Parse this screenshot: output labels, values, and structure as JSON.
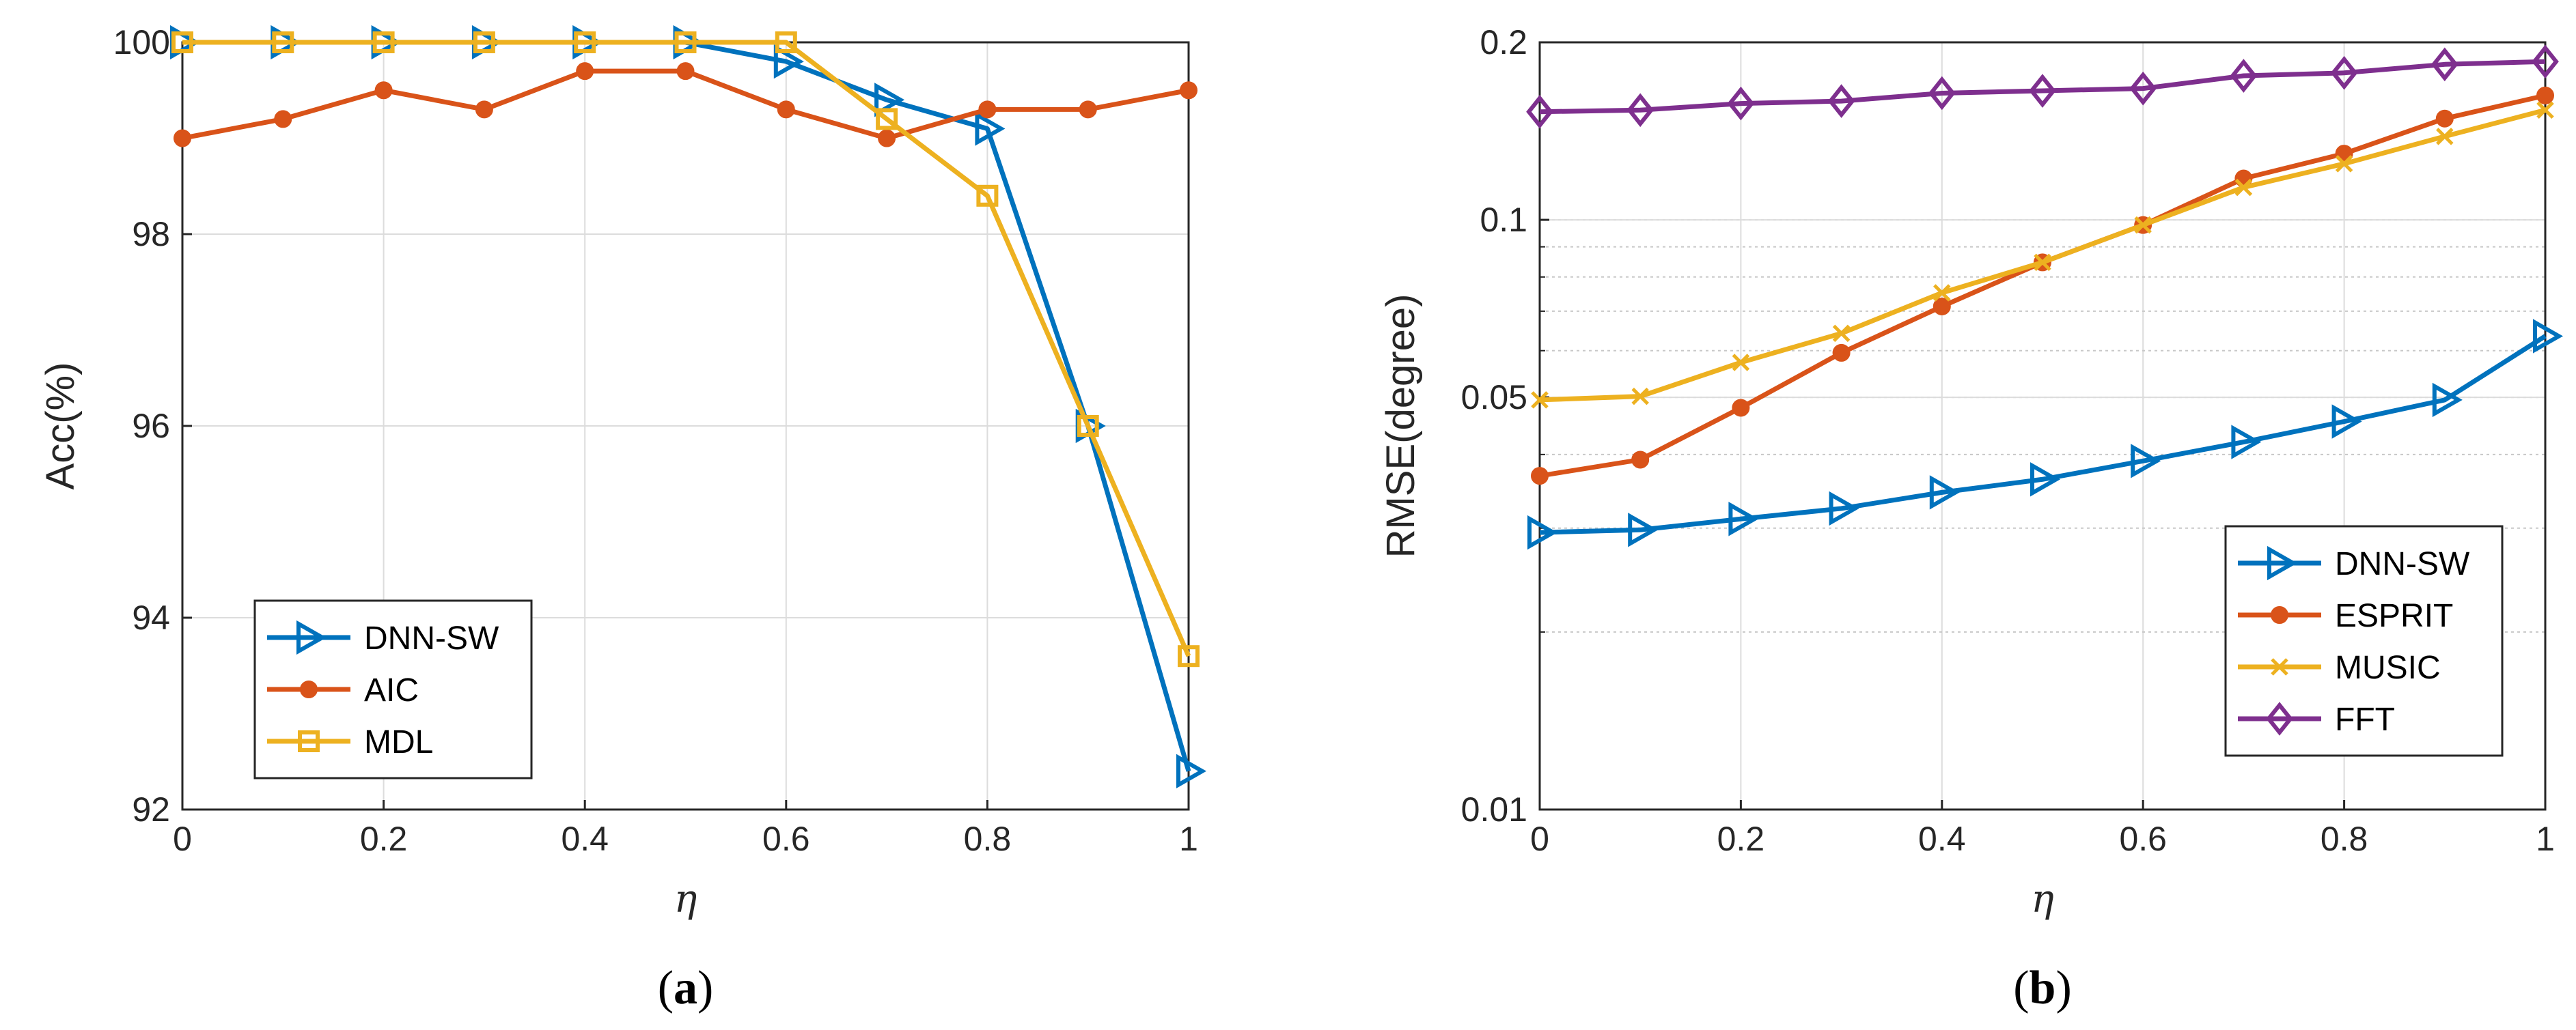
{
  "chart_data": [
    {
      "type": "line",
      "caption_open": "(",
      "caption_letter": "a",
      "caption_close": ")",
      "xlabel": "η",
      "ylabel": "Acc(%)",
      "x": [
        0,
        0.1,
        0.2,
        0.3,
        0.4,
        0.5,
        0.6,
        0.7,
        0.8,
        0.9,
        1
      ],
      "xlim": [
        0,
        1
      ],
      "ylim": [
        92,
        100
      ],
      "xticks": [
        "0",
        "0.2",
        "0.4",
        "0.6",
        "0.8",
        "1"
      ],
      "yticks": [
        "92",
        "94",
        "96",
        "98",
        "100"
      ],
      "grid": true,
      "legend_position": "bottom-left",
      "series": [
        {
          "name": "DNN-SW",
          "color": "#0072BD",
          "marker": "triangle-right",
          "values": [
            100,
            100,
            100,
            100,
            100,
            100,
            99.8,
            99.4,
            99.1,
            96.0,
            92.4
          ]
        },
        {
          "name": "AIC",
          "color": "#D95319",
          "marker": "circle",
          "values": [
            99.0,
            99.2,
            99.5,
            99.3,
            99.7,
            99.7,
            99.3,
            99.0,
            99.3,
            99.3,
            99.5
          ]
        },
        {
          "name": "MDL",
          "color": "#EDB120",
          "marker": "square",
          "values": [
            100,
            100,
            100,
            100,
            100,
            100,
            100,
            99.2,
            98.4,
            96.0,
            93.6
          ]
        }
      ]
    },
    {
      "type": "line",
      "yscale": "log",
      "caption_open": "(",
      "caption_letter": "b",
      "caption_close": ")",
      "xlabel": "η",
      "ylabel": "RMSE(degree)",
      "x": [
        0,
        0.1,
        0.2,
        0.3,
        0.4,
        0.5,
        0.6,
        0.7,
        0.8,
        0.9,
        1
      ],
      "xlim": [
        0,
        1
      ],
      "ylim": [
        0.01,
        0.2
      ],
      "xticks": [
        "0",
        "0.2",
        "0.4",
        "0.6",
        "0.8",
        "1"
      ],
      "yticks": [
        "0.01",
        "0.05",
        "0.1",
        "0.2"
      ],
      "grid": true,
      "legend_position": "bottom-right",
      "series": [
        {
          "name": "DNN-SW",
          "color": "#0072BD",
          "marker": "triangle-right",
          "values": [
            0.0295,
            0.0298,
            0.0311,
            0.0324,
            0.0345,
            0.0363,
            0.039,
            0.042,
            0.0455,
            0.0495,
            0.0635
          ]
        },
        {
          "name": "ESPRIT",
          "color": "#D95319",
          "marker": "circle",
          "values": [
            0.0368,
            0.0392,
            0.048,
            0.0595,
            0.0713,
            0.0847,
            0.098,
            0.1175,
            0.1295,
            0.1485,
            0.1625
          ]
        },
        {
          "name": "MUSIC",
          "color": "#EDB120",
          "marker": "x",
          "values": [
            0.0495,
            0.0502,
            0.0573,
            0.0642,
            0.0752,
            0.0847,
            0.098,
            0.1135,
            0.1245,
            0.1385,
            0.1535
          ]
        },
        {
          "name": "FFT",
          "color": "#7E2F8E",
          "marker": "diamond",
          "values": [
            0.1525,
            0.1535,
            0.1575,
            0.159,
            0.164,
            0.1655,
            0.167,
            0.1755,
            0.1775,
            0.1835,
            0.1855
          ]
        }
      ]
    }
  ]
}
